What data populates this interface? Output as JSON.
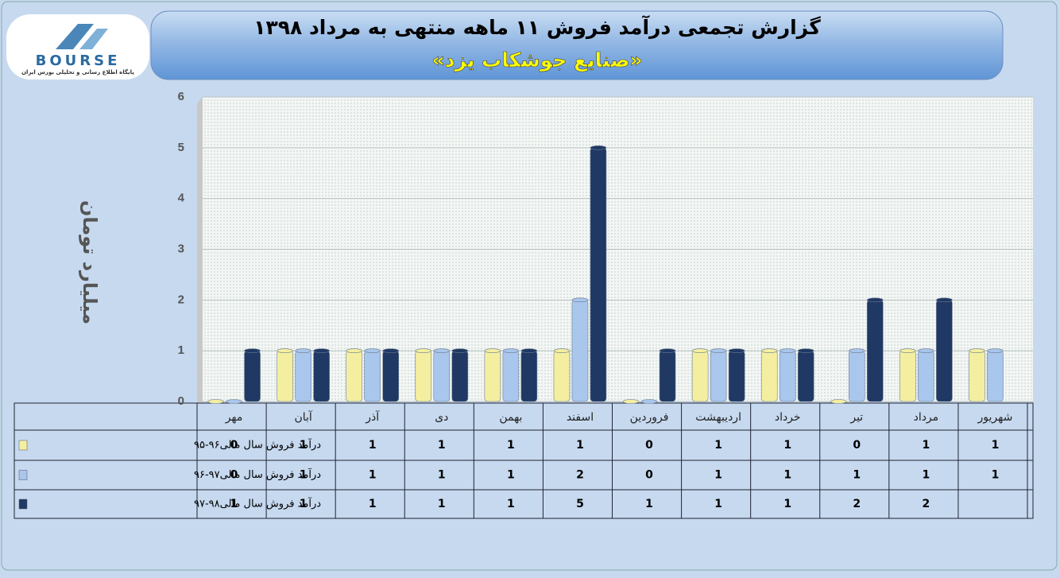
{
  "logo": {
    "name": "BOURSE",
    "caption": "پایگاه اطلاع رسانی و تحلیلی بورس ایران"
  },
  "chart_data": {
    "type": "bar",
    "title": "گزارش تجمعی درآمد فروش ۱۱ ماهه منتهی به مرداد ۱۳۹۸",
    "subtitle": "«صنایع جوشکاب یزد»",
    "y_label": "میلیارد تومان",
    "categories": [
      "مهر",
      "آبان",
      "آذر",
      "دی",
      "بهمن",
      "اسفند",
      "فروردین",
      "اردیبهشت",
      "خرداد",
      "تیر",
      "مرداد",
      "شهریور"
    ],
    "series": [
      {
        "name": "درآمد فروش سال مالی۹۶-۹۵",
        "color": "#f4efa0",
        "values": [
          0,
          1,
          1,
          1,
          1,
          1,
          0,
          1,
          1,
          0,
          1,
          1
        ]
      },
      {
        "name": "درآمد فروش سال مالی۹۷-۹۶",
        "color": "#a9c6ec",
        "values": [
          0,
          1,
          1,
          1,
          1,
          2,
          0,
          1,
          1,
          1,
          1,
          1
        ]
      },
      {
        "name": "درآمد فروش سال مالی۹۸-۹۷",
        "color": "#1f3864",
        "values": [
          1,
          1,
          1,
          1,
          1,
          5,
          1,
          1,
          1,
          2,
          2,
          null
        ]
      }
    ],
    "ylim": [
      0,
      6
    ],
    "yticks": [
      0,
      1,
      2,
      3,
      4,
      5,
      6
    ],
    "grid": true
  }
}
